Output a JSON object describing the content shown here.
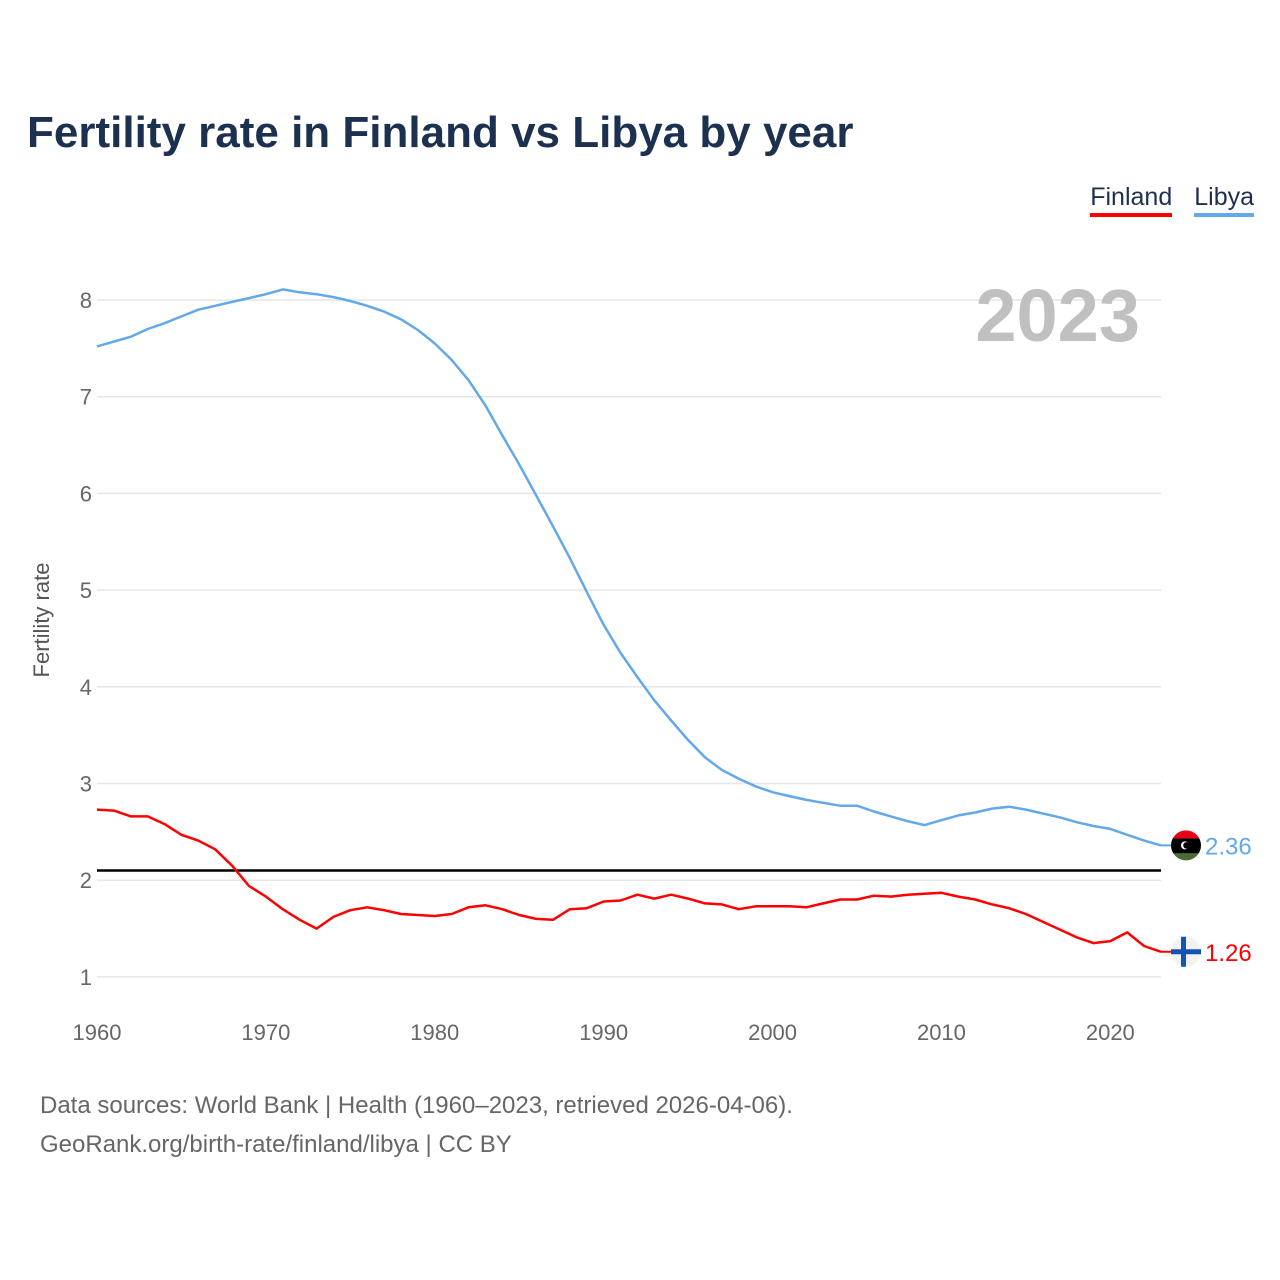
{
  "chart_data": {
    "type": "line",
    "title": "Fertility rate in Finland vs Libya by year",
    "ylabel": "Fertility rate",
    "xlabel": "",
    "xlim": [
      1960,
      2023
    ],
    "ylim": [
      0.8,
      8.3
    ],
    "yticks": [
      1,
      2,
      3,
      4,
      5,
      6,
      7,
      8
    ],
    "xticks": [
      1960,
      1970,
      1980,
      1990,
      2000,
      2010,
      2020
    ],
    "grid": true,
    "legend_position": "top-right",
    "current_year_label": "2023",
    "reference_line": {
      "value": 2.1,
      "color": "#000000"
    },
    "x": [
      1960,
      1961,
      1962,
      1963,
      1964,
      1965,
      1966,
      1967,
      1968,
      1969,
      1970,
      1971,
      1972,
      1973,
      1974,
      1975,
      1976,
      1977,
      1978,
      1979,
      1980,
      1981,
      1982,
      1983,
      1984,
      1985,
      1986,
      1987,
      1988,
      1989,
      1990,
      1991,
      1992,
      1993,
      1994,
      1995,
      1996,
      1997,
      1998,
      1999,
      2000,
      2001,
      2002,
      2003,
      2004,
      2005,
      2006,
      2007,
      2008,
      2009,
      2010,
      2011,
      2012,
      2013,
      2014,
      2015,
      2016,
      2017,
      2018,
      2019,
      2020,
      2021,
      2022,
      2023
    ],
    "series": [
      {
        "name": "Finland",
        "color": "#ff0000",
        "end_label": "1.26",
        "values": [
          2.73,
          2.72,
          2.66,
          2.66,
          2.58,
          2.47,
          2.41,
          2.32,
          2.15,
          1.94,
          1.83,
          1.7,
          1.59,
          1.5,
          1.62,
          1.69,
          1.72,
          1.69,
          1.65,
          1.64,
          1.63,
          1.65,
          1.72,
          1.74,
          1.7,
          1.64,
          1.6,
          1.59,
          1.7,
          1.71,
          1.78,
          1.79,
          1.85,
          1.81,
          1.85,
          1.81,
          1.76,
          1.75,
          1.7,
          1.73,
          1.73,
          1.73,
          1.72,
          1.76,
          1.8,
          1.8,
          1.84,
          1.83,
          1.85,
          1.86,
          1.87,
          1.83,
          1.8,
          1.75,
          1.71,
          1.65,
          1.57,
          1.49,
          1.41,
          1.35,
          1.37,
          1.46,
          1.32,
          1.26
        ]
      },
      {
        "name": "Libya",
        "color": "#62a8ea",
        "end_label": "2.36",
        "values": [
          7.52,
          7.57,
          7.62,
          7.7,
          7.76,
          7.83,
          7.9,
          7.94,
          7.98,
          8.02,
          8.06,
          8.11,
          8.08,
          8.06,
          8.03,
          7.99,
          7.94,
          7.88,
          7.8,
          7.69,
          7.55,
          7.38,
          7.17,
          6.91,
          6.6,
          6.3,
          5.98,
          5.66,
          5.33,
          4.98,
          4.64,
          4.35,
          4.1,
          3.86,
          3.65,
          3.45,
          3.27,
          3.14,
          3.05,
          2.97,
          2.91,
          2.87,
          2.83,
          2.8,
          2.77,
          2.77,
          2.71,
          2.66,
          2.61,
          2.57,
          2.62,
          2.67,
          2.7,
          2.74,
          2.76,
          2.73,
          2.69,
          2.65,
          2.6,
          2.56,
          2.53,
          2.47,
          2.41,
          2.36
        ]
      }
    ]
  },
  "footer": {
    "line1": "Data sources: World Bank | Health (1960–2023, retrieved 2026-04-06).",
    "line2": "GeoRank.org/birth-rate/finland/libya | CC BY"
  }
}
